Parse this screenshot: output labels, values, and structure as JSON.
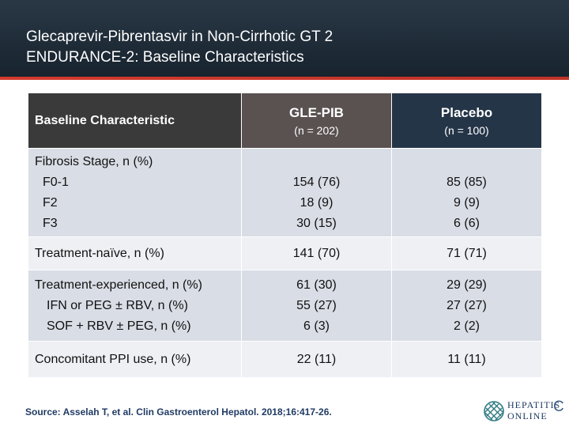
{
  "header": {
    "title_line1": "Glecaprevir-Pibrentasvir in Non-Cirrhotic GT 2",
    "title_line2": "ENDURANCE-2: Baseline Characteristics"
  },
  "table": {
    "col_header": "Baseline Characteristic",
    "groups": [
      {
        "name": "GLE-PIB",
        "n": "(n = 202)"
      },
      {
        "name": "Placebo",
        "n": "(n = 100)"
      }
    ],
    "rows": [
      {
        "label": "Fibrosis Stage, n (%)",
        "subs": [
          "F0-1",
          "F2",
          "F3"
        ],
        "gle": [
          "154 (76)",
          "18 (9)",
          "30 (15)"
        ],
        "placebo": [
          "85 (85)",
          "9 (9)",
          "6 (6)"
        ]
      },
      {
        "label": "Treatment-naïve, n (%)",
        "gle": "141 (70)",
        "placebo": "71 (71)"
      },
      {
        "label": "Treatment-experienced, n (%)",
        "subs": [
          "IFN or PEG ± RBV, n (%)",
          "SOF + RBV ± PEG, n (%)"
        ],
        "gle": [
          "61 (30)",
          "55 (27)",
          "6 (3)"
        ],
        "placebo": [
          "29 (29)",
          "27 (27)",
          "2 (2)"
        ]
      },
      {
        "label": "Concomitant PPI use, n (%)",
        "gle": "22 (11)",
        "placebo": "11 (11)"
      }
    ]
  },
  "source": "Source: Asselah T, et al. Clin Gastroenterol Hepatol. 2018;16:417-26.",
  "logo": {
    "line1": "HEPATITIS",
    "line2": "ONLINE",
    "letter": "C"
  }
}
